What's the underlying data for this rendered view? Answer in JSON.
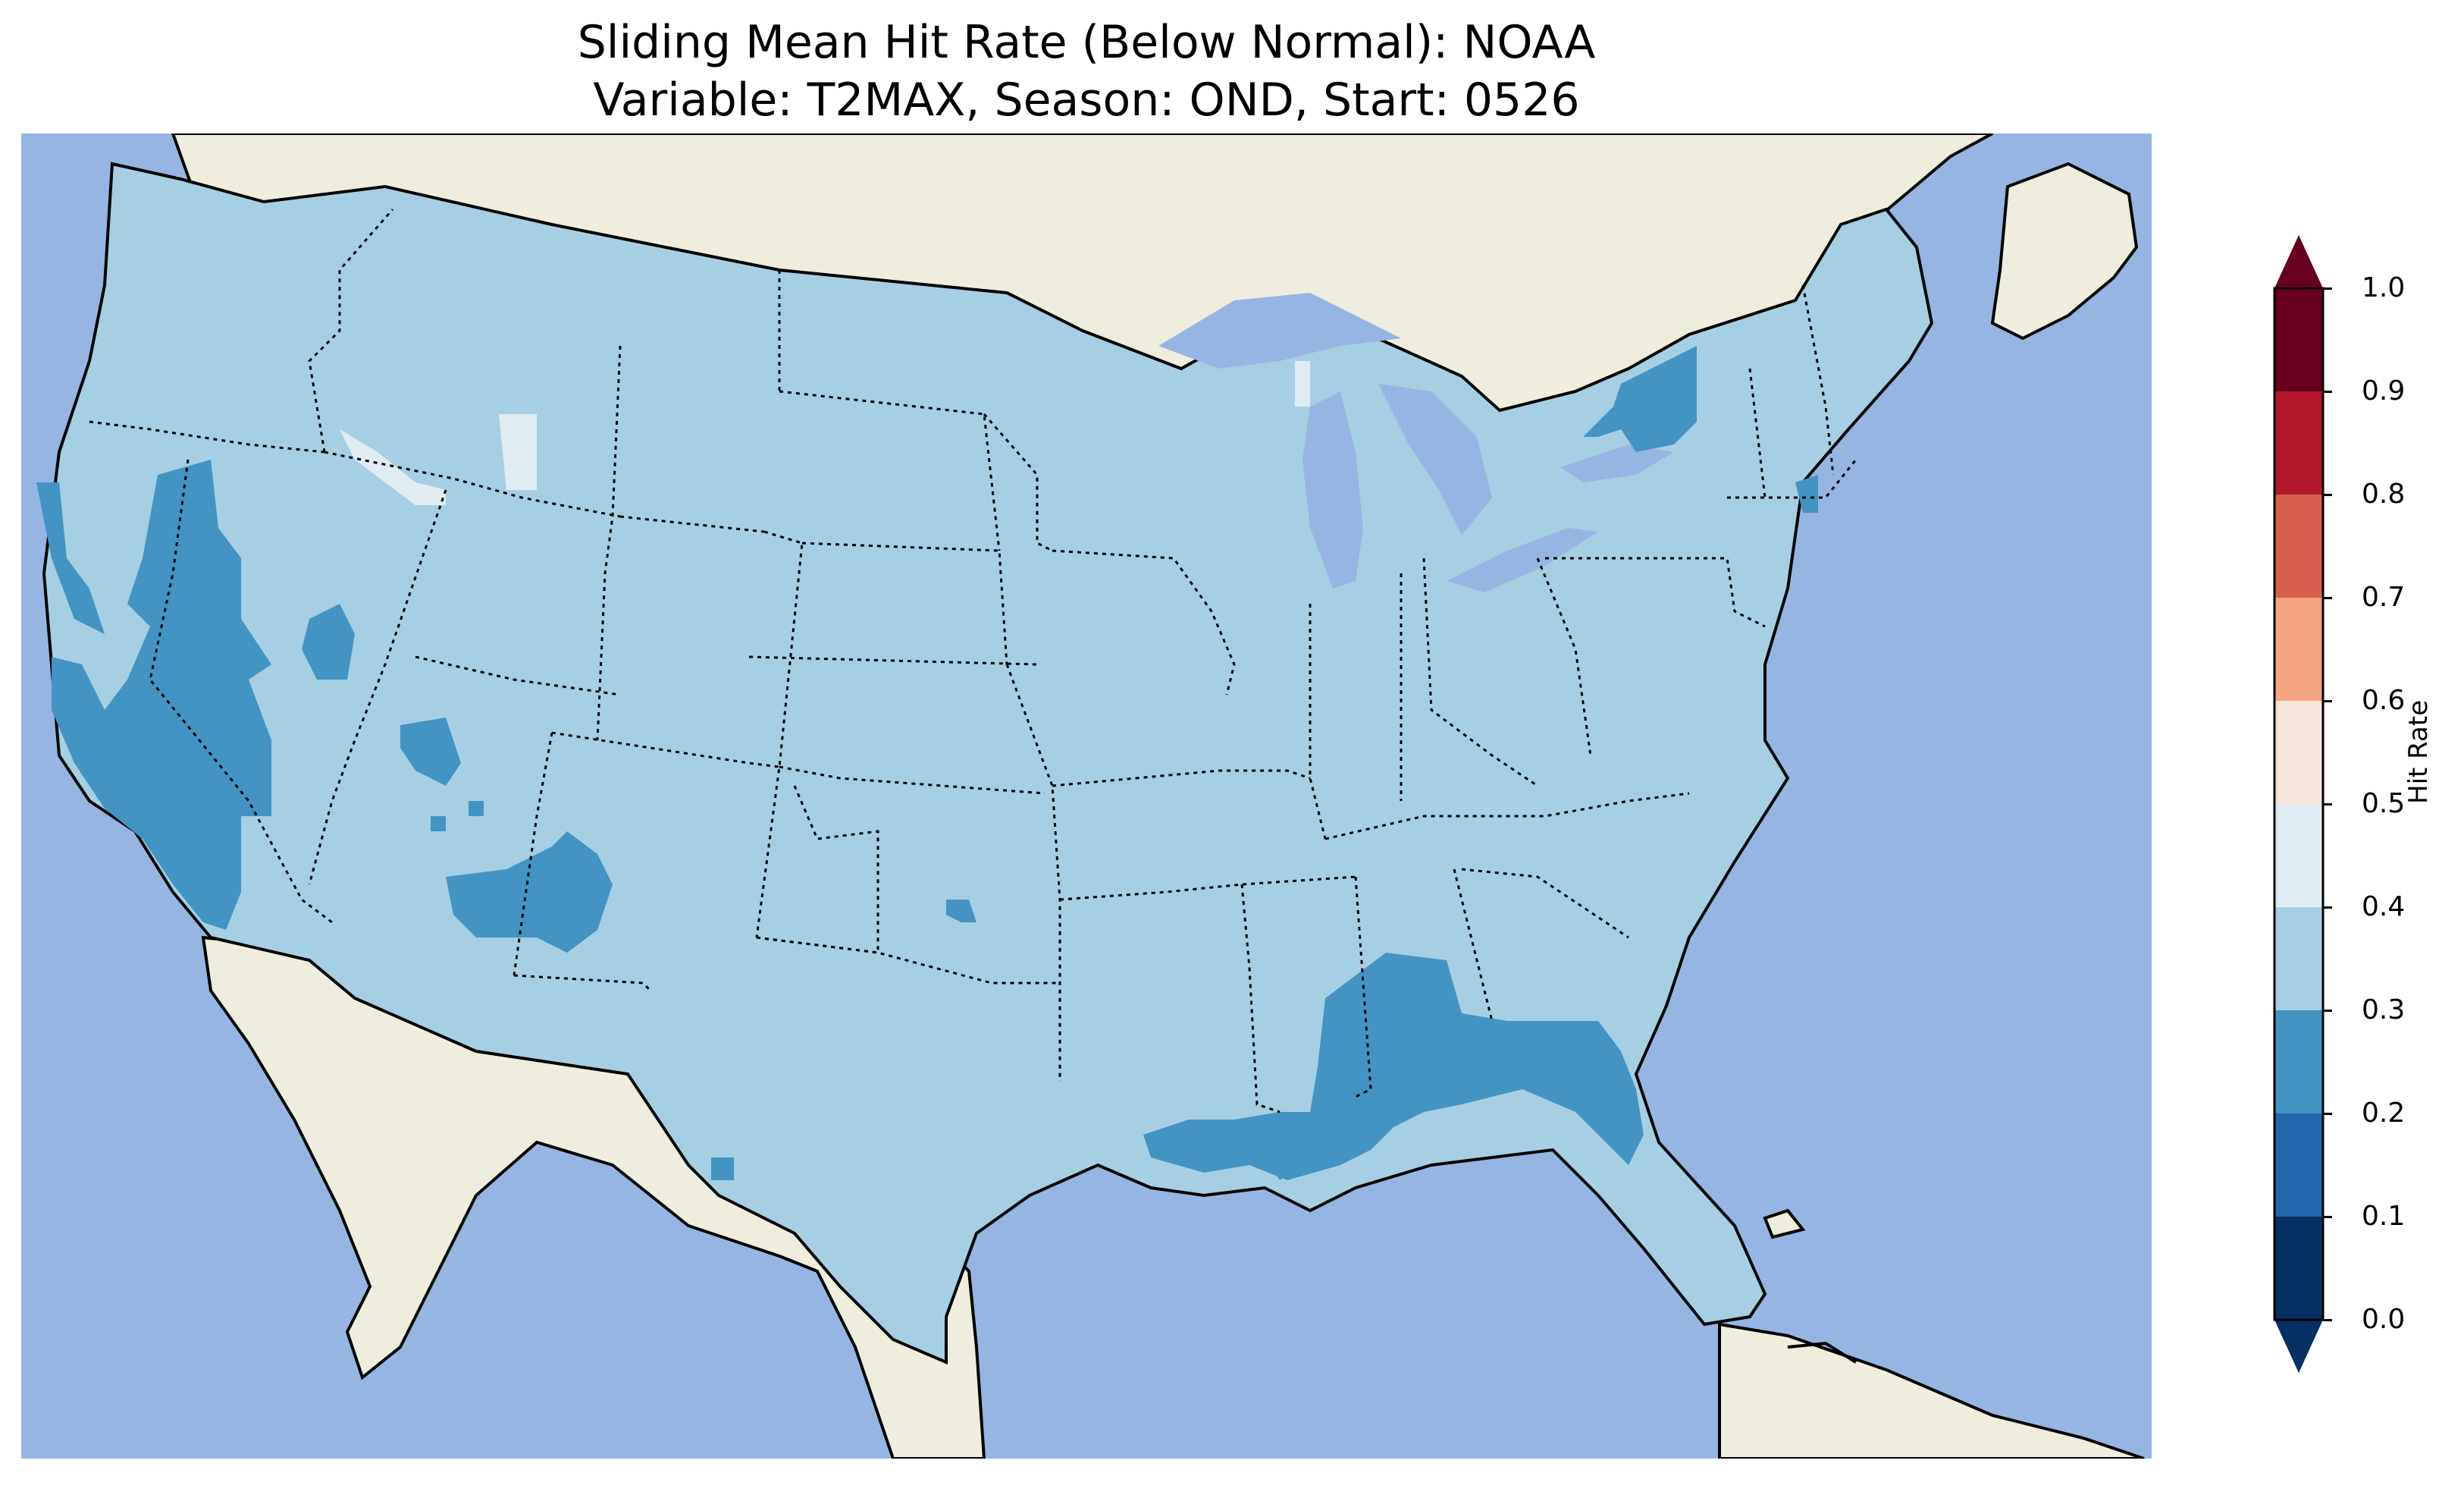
{
  "title": {
    "line1": "Sliding Mean Hit Rate (Below Normal): NOAA",
    "line2": "Variable: T2MAX, Season: OND, Start: 0526"
  },
  "map": {
    "region": "Contiguous United States",
    "ocean_color": "#97b5e2",
    "land_color": "#efedde",
    "boundaries": [
      "coastline",
      "country borders",
      "state borders (dotted)"
    ]
  },
  "colorbar": {
    "label": "Hit Rate",
    "ticks": [
      "0.0",
      "0.1",
      "0.2",
      "0.3",
      "0.4",
      "0.5",
      "0.6",
      "0.7",
      "0.8",
      "0.9",
      "1.0"
    ],
    "bins": [
      {
        "range": [
          0.0,
          0.1
        ],
        "color": "#053061"
      },
      {
        "range": [
          0.1,
          0.2
        ],
        "color": "#2166ac"
      },
      {
        "range": [
          0.2,
          0.3
        ],
        "color": "#4393c3"
      },
      {
        "range": [
          0.3,
          0.4
        ],
        "color": "#a7cfe4"
      },
      {
        "range": [
          0.4,
          0.5
        ],
        "color": "#e1ecf2"
      },
      {
        "range": [
          0.5,
          0.6
        ],
        "color": "#f7e5dc"
      },
      {
        "range": [
          0.6,
          0.7
        ],
        "color": "#f4a582"
      },
      {
        "range": [
          0.7,
          0.8
        ],
        "color": "#d6604d"
      },
      {
        "range": [
          0.8,
          0.9
        ],
        "color": "#b2182b"
      },
      {
        "range": [
          0.9,
          1.0
        ],
        "color": "#67001f"
      }
    ],
    "extend": "both"
  },
  "chart_data": {
    "type": "heatmap",
    "variable": "T2MAX",
    "season": "OND",
    "start": "0526",
    "value_range": [
      0.0,
      1.0
    ],
    "dominant_bin": [
      0.3,
      0.4
    ],
    "regions": [
      {
        "area": "Most of CONUS",
        "bin": [
          0.3,
          0.4
        ]
      },
      {
        "area": "California / Nevada",
        "bin": [
          0.2,
          0.3
        ]
      },
      {
        "area": "Arizona / New Mexico",
        "bin": [
          0.2,
          0.3
        ]
      },
      {
        "area": "Gulf Coast (AL, MS, LA, FL)",
        "bin": [
          0.2,
          0.3
        ]
      },
      {
        "area": "Upstate New York / Vermont",
        "bin": [
          0.2,
          0.3
        ]
      },
      {
        "area": "Idaho / Wyoming",
        "bin": [
          0.4,
          0.5
        ]
      }
    ]
  }
}
